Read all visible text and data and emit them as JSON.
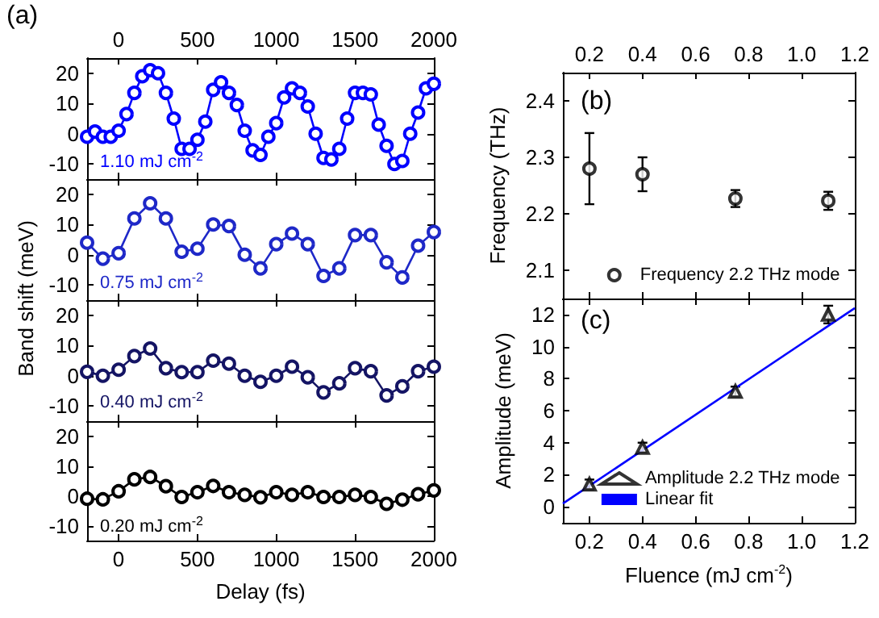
{
  "chart_data": [
    {
      "type": "line",
      "marker": "circle",
      "xlim": [
        -200,
        2000
      ],
      "xticks": [
        0,
        500,
        1000,
        1500,
        2000
      ],
      "x2lim": [
        -200,
        2000
      ],
      "x2ticks": [
        0,
        500,
        1000,
        1500,
        2000
      ],
      "ylim": [
        -15,
        25
      ],
      "yticks": [
        -10,
        0,
        10,
        20
      ],
      "tick_labels": "y",
      "annotations": [
        "(a)",
        "1.10 mJ cm$^{-2}$"
      ],
      "x": [
        -200,
        -150,
        -100,
        -50,
        0,
        50,
        100,
        150,
        200,
        250,
        300,
        350,
        400,
        450,
        500,
        550,
        600,
        650,
        700,
        750,
        800,
        850,
        900,
        950,
        1000,
        1050,
        1100,
        1150,
        1200,
        1250,
        1300,
        1350,
        1400,
        1450,
        1500,
        1550,
        1600,
        1650,
        1700,
        1750,
        1800,
        1850,
        1900,
        1950,
        2000
      ],
      "series": [
        {
          "color": "#0000ff",
          "values": [
            -1,
            0.7,
            -1,
            -1,
            1,
            6.5,
            13.5,
            19,
            21,
            20,
            13.5,
            5,
            -5,
            -5,
            -2,
            4,
            14.5,
            17,
            13.5,
            9.5,
            1,
            -5.5,
            -7,
            -1,
            3.5,
            12,
            15,
            13.5,
            9,
            0,
            -8,
            -8.5,
            -5,
            5,
            13.5,
            13.5,
            13,
            3,
            -4,
            -10,
            -9,
            0,
            7,
            15,
            16.5
          ]
        }
      ]
    },
    {
      "type": "line",
      "marker": "circle",
      "xlim": [
        -200,
        2000
      ],
      "xticks": [
        0,
        500,
        1000,
        1500,
        2000
      ],
      "ylim": [
        -15,
        25
      ],
      "yticks": [
        -10,
        0,
        10,
        20
      ],
      "tick_labels": "y",
      "ylabel": "Band shift (meV)",
      "annotations": [
        "0.75 mJ cm$^{-2}$"
      ],
      "x": [
        -200,
        -100,
        0,
        100,
        200,
        300,
        400,
        500,
        600,
        700,
        800,
        900,
        1000,
        1100,
        1200,
        1300,
        1400,
        1500,
        1600,
        1700,
        1800,
        1900,
        2000
      ],
      "series": [
        {
          "color": "#1e28c8",
          "values": [
            4,
            -1.3,
            0.5,
            12,
            17,
            12,
            1,
            2,
            10,
            9.5,
            0,
            -4.5,
            3.5,
            7,
            3.5,
            -7,
            -4.5,
            6.5,
            6.5,
            -2.5,
            -7.5,
            3,
            7.5
          ]
        }
      ]
    },
    {
      "type": "line",
      "marker": "circle",
      "xlim": [
        -200,
        2000
      ],
      "xticks": [
        0,
        500,
        1000,
        1500,
        2000
      ],
      "ylim": [
        -15,
        25
      ],
      "yticks": [
        -10,
        0,
        10,
        20
      ],
      "tick_labels": "y",
      "annotations": [
        "0.40 mJ cm$^{-2}$"
      ],
      "x": [
        -200,
        -100,
        0,
        100,
        200,
        300,
        400,
        500,
        600,
        700,
        800,
        900,
        1000,
        1100,
        1200,
        1300,
        1400,
        1500,
        1600,
        1700,
        1800,
        1900,
        2000
      ],
      "series": [
        {
          "color": "#141464",
          "values": [
            1.3,
            0,
            2,
            6.5,
            9,
            2.5,
            1.2,
            1.2,
            5,
            4,
            0,
            -2,
            0,
            3,
            -0.5,
            -5.5,
            -2.5,
            2.5,
            1.5,
            -6.5,
            -3.5,
            1.5,
            3
          ]
        }
      ]
    },
    {
      "type": "line",
      "marker": "circle",
      "xlim": [
        -200,
        2000
      ],
      "xticks": [
        0,
        500,
        1000,
        1500,
        2000
      ],
      "ylim": [
        -15,
        25
      ],
      "yticks": [
        -10,
        0,
        10,
        20
      ],
      "xlabel": "Delay (fs)",
      "annotations": [
        "0.20 mJ cm$^{-2}$"
      ],
      "x": [
        -200,
        -100,
        0,
        100,
        200,
        300,
        400,
        500,
        600,
        700,
        800,
        900,
        1000,
        1100,
        1200,
        1300,
        1400,
        1500,
        1600,
        1700,
        1800,
        1900,
        2000
      ],
      "series": [
        {
          "color": "#000000",
          "values": [
            -1,
            -1.2,
            1.5,
            5.5,
            6.3,
            3.2,
            -0.4,
            1.2,
            3.3,
            1.2,
            0.3,
            -0.5,
            1.2,
            0.3,
            1.2,
            -0.4,
            -0.4,
            0.3,
            -0.4,
            -2.7,
            -1.3,
            0.5,
            1.8
          ]
        }
      ]
    },
    {
      "type": "scatter",
      "marker": "circle",
      "xlim": [
        0.1,
        1.2
      ],
      "xticks": [
        0.2,
        0.4,
        0.6,
        0.8,
        1.0,
        1.2
      ],
      "x2lim": [
        0.1,
        1.2
      ],
      "x2ticks": [
        0.2,
        0.4,
        0.6,
        0.8,
        {
          "value": 1.0,
          "label": "1.0"
        },
        1.2
      ],
      "ylim": [
        2.05,
        2.45
      ],
      "yticks": [
        2.1,
        2.2,
        2.3,
        2.4
      ],
      "tick_labels": "y",
      "ylabel": "Frequency (THz)",
      "legend": "bottom right",
      "annotations": [
        "(b)"
      ],
      "x": [
        0.2,
        0.4,
        0.75,
        1.1
      ],
      "series": [
        {
          "name": "Frequency 2.2 THz mode",
          "color": "#000000",
          "values": [
            2.28,
            2.27,
            2.227,
            2.223
          ],
          "errors": [
            0.063,
            0.03,
            0.015,
            0.016
          ]
        }
      ]
    },
    {
      "type": "scatter",
      "marker": "triangle",
      "xlim": [
        0.1,
        1.2
      ],
      "xticks": [
        0.2,
        0.4,
        0.6,
        0.8,
        {
          "value": 1.0,
          "label": "1.0"
        },
        1.2
      ],
      "ylim": [
        -1,
        13
      ],
      "yticks": [
        0,
        2,
        4,
        6,
        8,
        10,
        12
      ],
      "xlabel": "Fluence (mJ cm$^{-2}$)",
      "ylabel": "Amplitude (meV)",
      "legend": "bottom right",
      "annotations": [
        "(c)"
      ],
      "x": [
        0.2,
        0.4,
        0.75,
        1.1
      ],
      "series": [
        {
          "name": "Amplitude 2.2 THz mode",
          "color": "#000000",
          "values": [
            1.4,
            3.7,
            7.2,
            12.0
          ],
          "errors": [
            0.3,
            0.3,
            0.3,
            0.55
          ]
        },
        {
          "name": "Linear fit",
          "type": "line",
          "marker": "none",
          "color": "#0000ff",
          "x": [
            0.1,
            1.2
          ],
          "values": [
            0.2,
            12.4
          ]
        }
      ]
    }
  ]
}
